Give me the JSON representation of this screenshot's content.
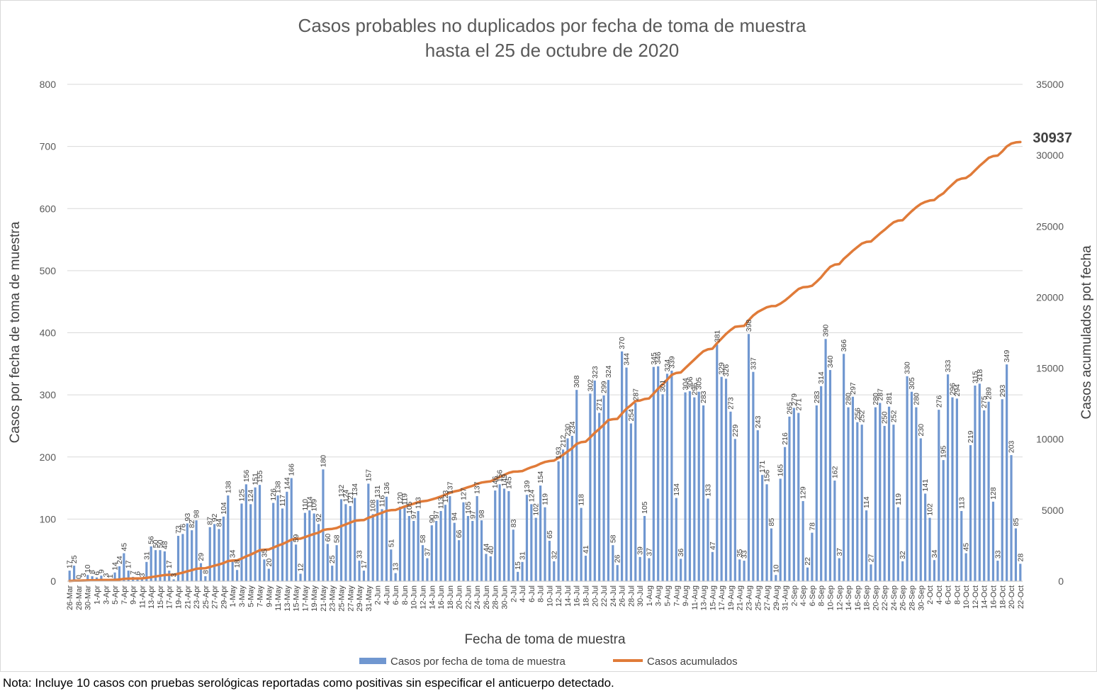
{
  "note": "Nota: Incluye 10 casos con pruebas serológicas reportadas como positivas sin especificar el anticuerpo detectado.",
  "colors": {
    "bars": "#7097d0",
    "line": "#e07b39",
    "grid": "#d9d9d9",
    "text": "#595959"
  },
  "chart_data": {
    "type": "bar",
    "title": "Casos probables no duplicados por fecha de toma de muestra",
    "subtitle": "hasta el  25 de octubre de 2020",
    "xlabel": "Fecha de toma de muestra",
    "ylabel": "Casos por fecha de toma de muestra",
    "y2label": "Casos acumulados pot fecha",
    "ylim": [
      0,
      800
    ],
    "y2lim": [
      0,
      35000
    ],
    "yticks": [
      "0",
      "100",
      "200",
      "300",
      "400",
      "500",
      "600",
      "700",
      "800"
    ],
    "y2ticks": [
      "0",
      "5000",
      "10000",
      "15000",
      "20000",
      "25000",
      "30000",
      "35000"
    ],
    "grid": true,
    "legend_position": "bottom",
    "final_cumulative_label": "30937",
    "start_date": "2020-03-26",
    "x_tick_labels": [
      "26-Mar",
      "28-Mar",
      "30-Mar",
      "1-Apr",
      "3-Apr",
      "5-Apr",
      "7-Apr",
      "9-Apr",
      "11-Apr",
      "13-Apr",
      "15-Apr",
      "17-Apr",
      "19-Apr",
      "21-Apr",
      "23-Apr",
      "25-Apr",
      "27-Apr",
      "29-Apr",
      "1-May",
      "3-May",
      "5-May",
      "7-May",
      "9-May",
      "11-May",
      "13-May",
      "15-May",
      "17-May",
      "19-May",
      "21-May",
      "23-May",
      "25-May",
      "27-May",
      "29-May",
      "31-May",
      "2-Jun",
      "4-Jun",
      "6-Jun",
      "8-Jun",
      "10-Jun",
      "12-Jun",
      "14-Jun",
      "16-Jun",
      "18-Jun",
      "20-Jun",
      "22-Jun",
      "24-Jun",
      "26-Jun",
      "28-Jun",
      "30-Jun",
      "2-Jul",
      "4-Jul",
      "6-Jul",
      "8-Jul",
      "10-Jul",
      "12-Jul",
      "14-Jul",
      "16-Jul",
      "18-Jul",
      "20-Jul",
      "22-Jul",
      "24-Jul",
      "26-Jul",
      "28-Jul",
      "30-Jul",
      "1-Aug",
      "3-Aug",
      "5-Aug",
      "7-Aug",
      "9-Aug",
      "11-Aug",
      "13-Aug",
      "15-Aug",
      "17-Aug",
      "19-Aug",
      "21-Aug",
      "23-Aug",
      "25-Aug",
      "27-Aug",
      "29-Aug",
      "31-Aug",
      "2-Sep",
      "4-Sep",
      "6-Sep",
      "8-Sep",
      "10-Sep",
      "12-Sep",
      "14-Sep",
      "16-Sep",
      "18-Sep",
      "20-Sep",
      "22-Sep",
      "24-Sep",
      "26-Sep",
      "28-Sep",
      "30-Sep",
      "2-Oct",
      "4-Oct",
      "6-Oct",
      "8-Oct",
      "10-Oct",
      "12-Oct",
      "14-Oct",
      "16-Oct",
      "18-Oct",
      "20-Oct",
      "22-Oct"
    ],
    "series": [
      {
        "name": "Casos por fecha de toma de muestra",
        "type": "bar",
        "values": [
          17,
          25,
          0,
          3,
          10,
          8,
          6,
          9,
          3,
          1,
          14,
          24,
          45,
          17,
          7,
          6,
          3,
          31,
          56,
          50,
          50,
          48,
          17,
          3,
          73,
          76,
          93,
          82,
          98,
          29,
          8,
          87,
          92,
          84,
          104,
          138,
          34,
          18,
          125,
          156,
          124,
          151,
          155,
          35,
          20,
          126,
          138,
          117,
          144,
          166,
          59,
          12,
          110,
          114,
          109,
          92,
          180,
          60,
          25,
          58,
          132,
          124,
          121,
          134,
          33,
          17,
          157,
          108,
          131,
          116,
          136,
          51,
          13,
          120,
          119,
          105,
          97,
          113,
          58,
          37,
          90,
          97,
          113,
          123,
          137,
          94,
          66,
          127,
          105,
          97,
          137,
          98,
          44,
          40,
          146,
          156,
          149,
          145,
          83,
          15,
          31,
          139,
          124,
          102,
          154,
          119,
          65,
          32,
          193,
          212,
          230,
          234,
          308,
          118,
          41,
          302,
          323,
          271,
          299,
          324,
          58,
          26,
          370,
          344,
          254,
          287,
          39,
          105,
          37,
          345,
          346,
          301,
          334,
          339,
          134,
          36,
          304,
          306,
          296,
          305,
          283,
          133,
          47,
          381,
          329,
          326,
          273,
          229,
          35,
          33,
          398,
          337,
          243,
          171,
          156,
          85,
          10,
          165,
          216,
          265,
          279,
          271,
          129,
          22,
          78,
          283,
          314,
          390,
          340,
          162,
          37,
          366,
          280,
          297,
          256,
          252,
          114,
          27,
          280,
          287,
          250,
          281,
          252,
          119,
          32,
          330,
          305,
          280,
          230,
          141,
          102,
          34,
          276,
          195,
          333,
          296,
          294,
          113,
          45,
          219,
          315,
          318,
          275,
          289,
          128,
          33,
          293,
          349,
          203,
          85,
          28
        ]
      },
      {
        "name": "Casos acumulados",
        "type": "line",
        "values": [
          17,
          42,
          42,
          45,
          55,
          63,
          69,
          78,
          81,
          82,
          96,
          120,
          165,
          182,
          189,
          195,
          198,
          229,
          285,
          335,
          385,
          433,
          450,
          453,
          526,
          602,
          695,
          777,
          875,
          904,
          912,
          999,
          1091,
          1175,
          1279,
          1417,
          1451,
          1469,
          1594,
          1750,
          1874,
          2025,
          2180,
          2215,
          2235,
          2361,
          2499,
          2616,
          2760,
          2926,
          2985,
          2997,
          3107,
          3221,
          3330,
          3422,
          3602,
          3662,
          3687,
          3745,
          3877,
          4001,
          4122,
          4256,
          4289,
          4306,
          4463,
          4571,
          4702,
          4818,
          4954,
          5005,
          5018,
          5138,
          5257,
          5362,
          5459,
          5572,
          5630,
          5667,
          5757,
          5854,
          5967,
          6090,
          6227,
          6321,
          6387,
          6514,
          6619,
          6716,
          6853,
          6951,
          6995,
          7035,
          7181,
          7337,
          7486,
          7631,
          7714,
          7729,
          7760,
          7899,
          8023,
          8125,
          8279,
          8398,
          8463,
          8495,
          8688,
          8900,
          9130,
          9364,
          9672,
          9790,
          9831,
          10133,
          10456,
          10727,
          11026,
          11350,
          11408,
          11434,
          11804,
          12148,
          12402,
          12689,
          12728,
          12833,
          12870,
          13215,
          13561,
          13862,
          14196,
          14535,
          14669,
          14705,
          15009,
          15315,
          15611,
          15916,
          16199,
          16332,
          16379,
          16760,
          17089,
          17415,
          17688,
          17917,
          17952,
          17985,
          18383,
          18720,
          18963,
          19134,
          19290,
          19375,
          19385,
          19550,
          19766,
          20031,
          20310,
          20581,
          20710,
          20732,
          20810,
          21093,
          21407,
          21797,
          22137,
          22299,
          22336,
          22702,
          22982,
          23279,
          23535,
          23787,
          23901,
          23928,
          24208,
          24495,
          24745,
          25026,
          25278,
          25397,
          25429,
          25759,
          26064,
          26344,
          26574,
          26715,
          26817,
          26851,
          27127,
          27322,
          27655,
          27951,
          28245,
          28358,
          28403,
          28622,
          28937,
          29255,
          29530,
          29819,
          29947,
          29980,
          30273,
          30622,
          30825,
          30910,
          30937
        ]
      }
    ]
  },
  "legend": {
    "bars_label": "Casos por fecha de toma de muestra",
    "line_label": "Casos acumulados"
  }
}
